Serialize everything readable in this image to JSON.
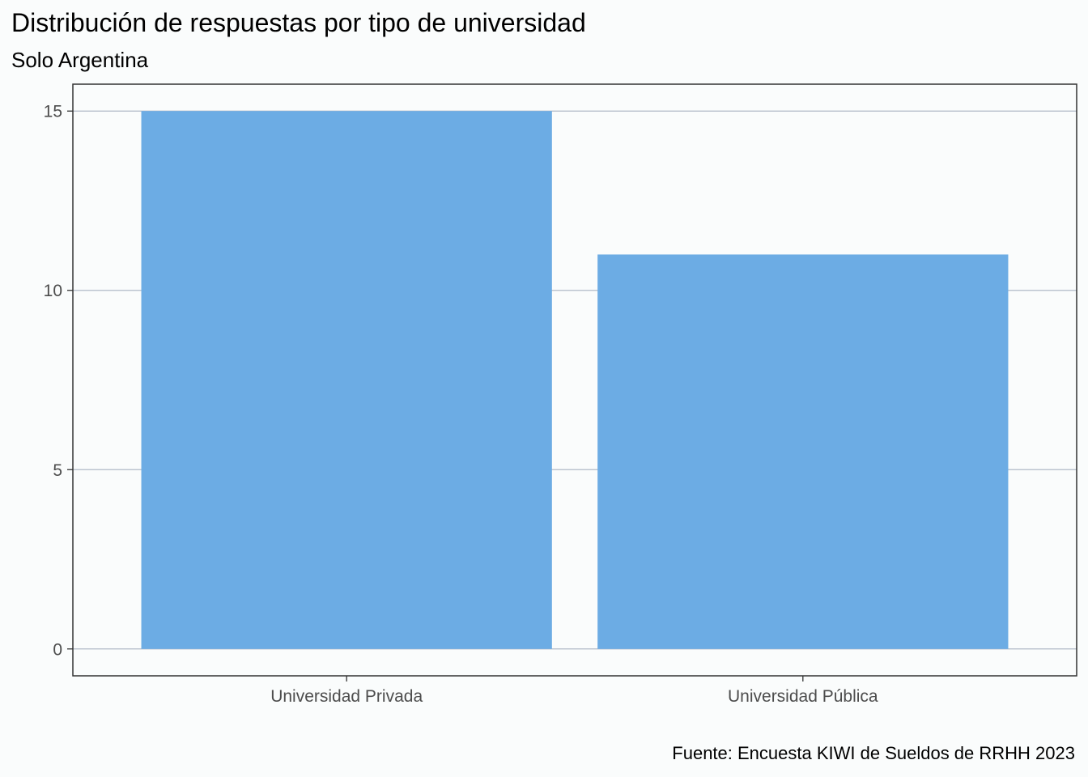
{
  "chart_data": {
    "type": "bar",
    "title": "Distribución de respuestas por tipo de universidad",
    "subtitle": "Solo Argentina",
    "caption": "Fuente: Encuesta KIWI de Sueldos de RRHH 2023",
    "categories": [
      "Universidad Privada",
      "Universidad Pública"
    ],
    "values": [
      15,
      11
    ],
    "xlabel": "",
    "ylabel": "",
    "ylim": [
      -0.75,
      15.75
    ],
    "yticks": [
      0,
      5,
      10,
      15
    ],
    "grid": "horizontal major",
    "legend": "none",
    "colors": {
      "bar": "#6CACE4",
      "grid": "#B0BAC8",
      "background": "#FAFCFC",
      "panel_border": "#333333"
    }
  }
}
